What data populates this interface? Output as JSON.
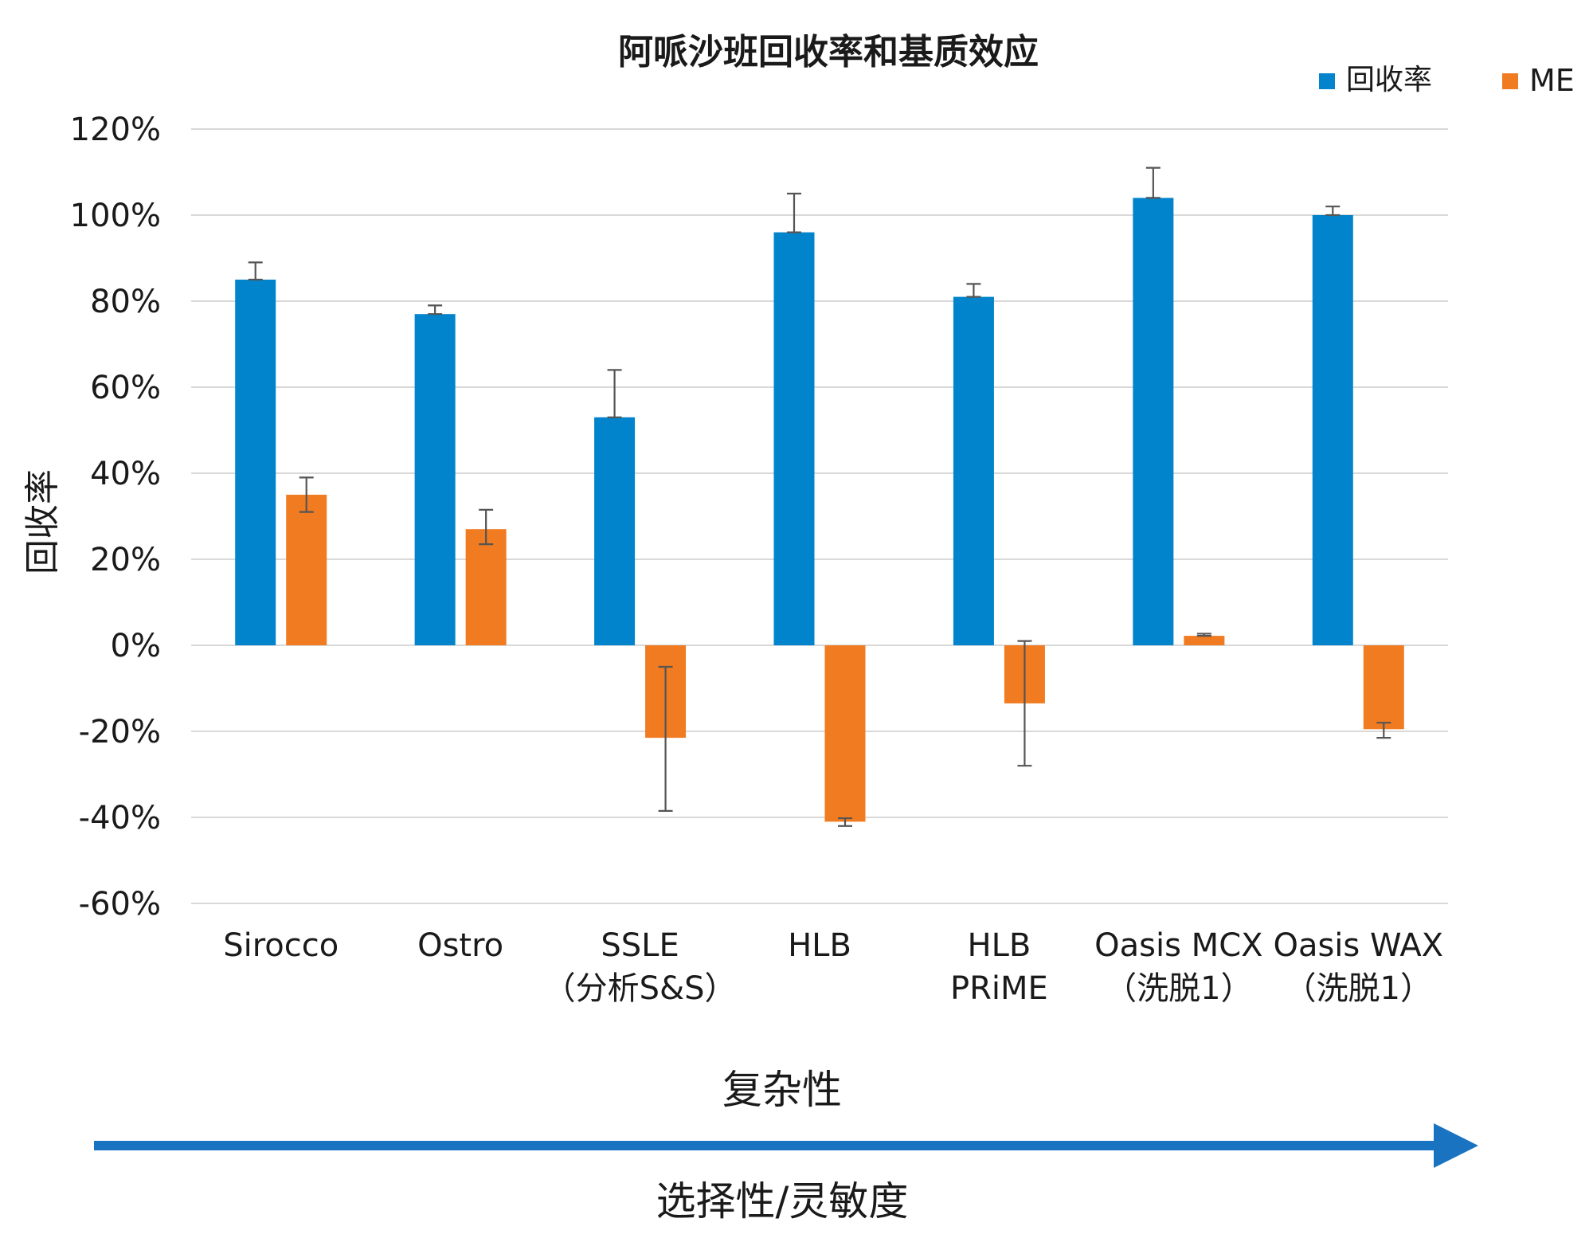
{
  "chart_data": {
    "type": "bar",
    "title": "阿哌沙班回收率和基质效应",
    "xlabel": "",
    "ylabel": "回收率",
    "ylim": [
      -60,
      120
    ],
    "yticks": [
      "120%",
      "100%",
      "80%",
      "60%",
      "40%",
      "20%",
      "0%",
      "-20%",
      "-40%",
      "-60%"
    ],
    "grid": true,
    "legend_position": "top-right",
    "categories": [
      [
        "Sirocco"
      ],
      [
        "Ostro"
      ],
      [
        "SSLE",
        "（分析S&S）"
      ],
      [
        "HLB"
      ],
      [
        "HLB",
        "PRiME"
      ],
      [
        "Oasis MCX",
        "（洗脱1）"
      ],
      [
        "Oasis WAX",
        "（洗脱1）"
      ]
    ],
    "series": [
      {
        "name": "回收率",
        "color": "#0284cc",
        "values": [
          85,
          77,
          53,
          96,
          81,
          104,
          100
        ],
        "error_top": [
          89,
          79,
          64,
          105,
          84,
          111,
          102
        ]
      },
      {
        "name": "ME",
        "color": "#f07b21",
        "values": [
          35,
          27,
          -21.5,
          -41,
          -13.5,
          2.2,
          -19.5
        ],
        "error_low": [
          31,
          23.5,
          -38.5,
          -42,
          -28,
          2.2,
          -21.5
        ],
        "error_high": [
          39,
          31.5,
          -5,
          -40.2,
          1,
          2.7,
          -18
        ]
      }
    ]
  },
  "annotations": {
    "axis_text_top": "复杂性",
    "axis_text_bottom": "选择性/灵敏度",
    "arrow_color": "#1a73c0"
  }
}
